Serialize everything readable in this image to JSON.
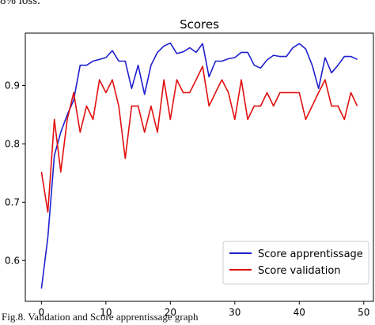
{
  "document": {
    "top_text": "8% loss.",
    "caption": "Fig.8. Validation and Score apprentissage graph"
  },
  "chart_data": {
    "type": "line",
    "title": "Scores",
    "xlabel": "",
    "ylabel": "",
    "xlim": [
      -2.5,
      51.5
    ],
    "ylim": [
      0.53,
      0.99
    ],
    "xticks": [
      0,
      10,
      20,
      30,
      40,
      50
    ],
    "yticks": [
      0.6,
      0.7,
      0.8,
      0.9
    ],
    "grid": false,
    "legend_position": "bottom-right",
    "x": [
      0,
      1,
      2,
      3,
      4,
      5,
      6,
      7,
      8,
      9,
      10,
      11,
      12,
      13,
      14,
      15,
      16,
      17,
      18,
      19,
      20,
      21,
      22,
      23,
      24,
      25,
      26,
      27,
      28,
      29,
      30,
      31,
      32,
      33,
      34,
      35,
      36,
      37,
      38,
      39,
      40,
      41,
      42,
      43,
      44,
      45,
      46,
      47,
      48,
      49
    ],
    "series": [
      {
        "name": "Score apprentissage",
        "color": "#1f1fcf",
        "values": [
          0.552,
          0.64,
          0.78,
          0.82,
          0.85,
          0.875,
          0.935,
          0.935,
          0.942,
          0.945,
          0.948,
          0.96,
          0.942,
          0.942,
          0.895,
          0.935,
          0.885,
          0.935,
          0.957,
          0.968,
          0.973,
          0.955,
          0.958,
          0.965,
          0.957,
          0.972,
          0.915,
          0.942,
          0.942,
          0.946,
          0.948,
          0.957,
          0.957,
          0.935,
          0.93,
          0.944,
          0.952,
          0.95,
          0.95,
          0.965,
          0.972,
          0.963,
          0.935,
          0.895,
          0.948,
          0.922,
          0.935,
          0.95,
          0.95,
          0.945
        ]
      },
      {
        "name": "Score validation",
        "color": "#e01010",
        "values": [
          0.752,
          0.683,
          0.842,
          0.752,
          0.842,
          0.888,
          0.82,
          0.865,
          0.842,
          0.91,
          0.888,
          0.91,
          0.865,
          0.775,
          0.865,
          0.865,
          0.82,
          0.865,
          0.82,
          0.91,
          0.842,
          0.91,
          0.888,
          0.888,
          0.91,
          0.933,
          0.865,
          0.888,
          0.91,
          0.888,
          0.842,
          0.91,
          0.842,
          0.865,
          0.865,
          0.888,
          0.865,
          0.888,
          0.888,
          0.888,
          0.888,
          0.842,
          0.865,
          0.888,
          0.91,
          0.865,
          0.865,
          0.842,
          0.888,
          0.865
        ]
      }
    ]
  }
}
